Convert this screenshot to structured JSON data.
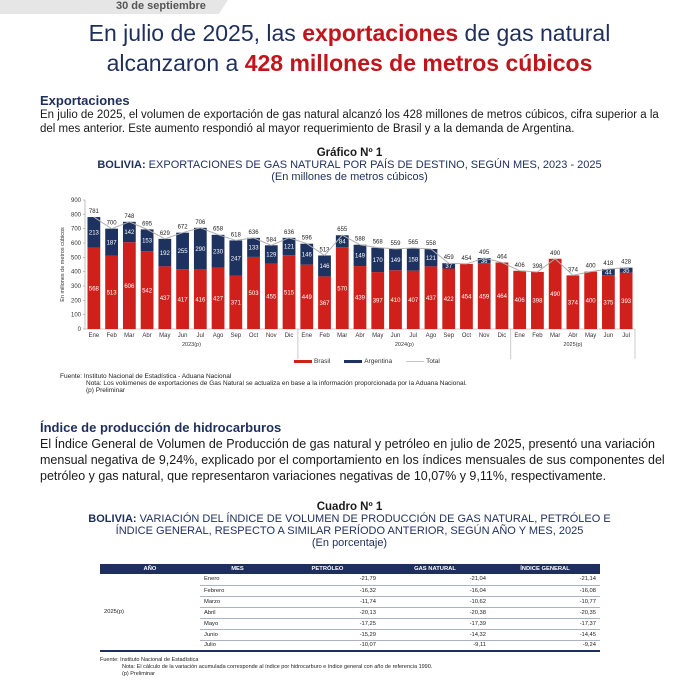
{
  "header": {
    "date": "30 de septiembre"
  },
  "headline": {
    "part1": "En julio de 2025, las ",
    "highlight1": "exportaciones",
    "part2": " de gas natural",
    "part3": "alcanzaron a ",
    "highlight2": "428 millones de metros cúbicos"
  },
  "section1": {
    "title": "Exportaciones",
    "body": "En julio de 2025, el volumen de exportación de gas natural alcanzó los 428 millones de metros cúbicos, cifra superior a la del mes anterior. Este aumento respondió al mayor requerimiento de Brasil y a la demanda de Argentina."
  },
  "figure": {
    "number": "Gráfico Nº 1",
    "country": "BOLIVIA:",
    "title": " EXPORTACIONES DE GAS NATURAL POR PAÍS DE DESTINO, SEGÚN MES, 2023 - 2025",
    "unit": "(En millones de metros cúbicos)",
    "source": "Fuente: Instituto Nacional de Estadística - Aduana Nacional",
    "note": "Nota:  Los volúmenes de exportaciones de Gas Natural se actualiza en base a la información proporcionada por la Aduana Nacional.",
    "prelim": "(p) Preliminar"
  },
  "chart_data": {
    "type": "bar",
    "stacked": true,
    "title": "BOLIVIA: EXPORTACIONES DE GAS NATURAL POR PAÍS DE DESTINO, SEGÚN MES, 2023 - 2025",
    "xlabel": "",
    "ylabel": "En millones de metros cúbicos",
    "ylim": [
      0,
      900
    ],
    "yticks": [
      0,
      100,
      200,
      300,
      400,
      500,
      600,
      700,
      800,
      900
    ],
    "grid": false,
    "legend_position": "bottom",
    "categories": [
      "Ene",
      "Feb",
      "Mar",
      "Abr",
      "May",
      "Jun",
      "Jul",
      "Ago",
      "Sep",
      "Oct",
      "Nov",
      "Dic",
      "Ene",
      "Feb",
      "Mar",
      "Abr",
      "May",
      "Jun",
      "Jul",
      "Ago",
      "Sep",
      "Oct",
      "Nov",
      "Dic",
      "Ene",
      "Feb",
      "Mar",
      "Abr",
      "May",
      "Jun",
      "Jul"
    ],
    "year_groups": [
      {
        "label": "2023(p)",
        "count": 12
      },
      {
        "label": "2024(p)",
        "count": 12
      },
      {
        "label": "2025(p)",
        "count": 7
      }
    ],
    "series": [
      {
        "name": "Brasil",
        "color": "#d0201c",
        "values": [
          568,
          513,
          606,
          542,
          437,
          417,
          416,
          427,
          371,
          503,
          455,
          515,
          449,
          367,
          570,
          439,
          397,
          410,
          407,
          437,
          422,
          454,
          459,
          464,
          406,
          398,
          490,
          374,
          400,
          375,
          393
        ]
      },
      {
        "name": "Argentina",
        "color": "#1e3260",
        "values": [
          213,
          187,
          142,
          153,
          192,
          255,
          290,
          230,
          247,
          133,
          129,
          121,
          146,
          146,
          84,
          149,
          170,
          149,
          158,
          121,
          37,
          0,
          36,
          0,
          0,
          0,
          0,
          0,
          0,
          44,
          35
        ]
      },
      {
        "name": "Total",
        "color": "#b0b0b0",
        "type": "line",
        "values": [
          781,
          700,
          748,
          695,
          629,
          672,
          706,
          658,
          618,
          636,
          584,
          636,
          596,
          513,
          655,
          588,
          568,
          559,
          565,
          558,
          459,
          454,
          495,
          464,
          406,
          398,
          490,
          374,
          400,
          418,
          428
        ]
      }
    ]
  },
  "section2": {
    "title": "Índice de producción de hidrocarburos",
    "body": "El Índice General de Volumen de Producción de gas natural y petróleo en julio de 2025, presentó una variación mensual negativa de 9,24%, explicado por el comportamiento en los índices mensuales de sus componentes del petróleo y gas natural, que representaron variaciones negativas de 10,07% y 9,11%, respectivamente."
  },
  "table": {
    "number": "Cuadro Nº 1",
    "country": "BOLIVIA:",
    "title_line1": " VARIACIÓN DEL ÍNDICE DE VOLUMEN DE PRODUCCIÓN DE GAS NATURAL, PETRÓLEO E",
    "title_line2": "ÍNDICE GENERAL, RESPECTO A SIMILAR PERÍODO ANTERIOR, SEGÚN AÑO Y MES, 2025",
    "unit": "(En porcentaje)",
    "headers": [
      "AÑO",
      "MES",
      "PETRÓLEO",
      "GAS NATURAL",
      "ÍNDICE GENERAL"
    ],
    "year": "2025(p)",
    "rows": [
      {
        "mes": "Enero",
        "petroleo": "-21,79",
        "gas": "-21,04",
        "indice": "-21,14"
      },
      {
        "mes": "Febrero",
        "petroleo": "-16,32",
        "gas": "-16,04",
        "indice": "-16,08"
      },
      {
        "mes": "Marzo",
        "petroleo": "-11,74",
        "gas": "-10,62",
        "indice": "-10,77"
      },
      {
        "mes": "Abril",
        "petroleo": "-20,13",
        "gas": "-20,38",
        "indice": "-20,35"
      },
      {
        "mes": "Mayo",
        "petroleo": "-17,25",
        "gas": "-17,39",
        "indice": "-17,37"
      },
      {
        "mes": "Junio",
        "petroleo": "-15,29",
        "gas": "-14,32",
        "indice": "-14,45"
      },
      {
        "mes": "Julio",
        "petroleo": "-10,07",
        "gas": "-9,11",
        "indice": "-9,24"
      }
    ],
    "source": "Fuente: Instituto Nacional de Estadística",
    "note": "Nota: El cálculo de la variación acumulada corresponde al índice por hidrocarburo e índice general con año de referencia 1990.",
    "prelim": "(p) Preliminar"
  }
}
